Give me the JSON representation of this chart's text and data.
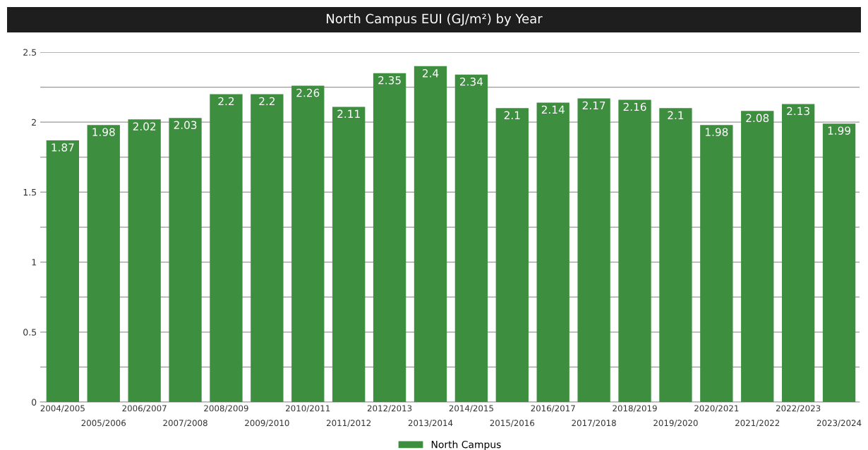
{
  "chart_data": {
    "type": "bar",
    "title": "North Campus EUI (GJ/m²) by Year",
    "categories": [
      "2004/2005",
      "2005/2006",
      "2006/2007",
      "2007/2008",
      "2008/2009",
      "2009/2010",
      "2010/2011",
      "2011/2012",
      "2012/2013",
      "2013/2014",
      "2014/2015",
      "2015/2016",
      "2016/2017",
      "2017/2018",
      "2018/2019",
      "2019/2020",
      "2020/2021",
      "2021/2022",
      "2022/2023",
      "2023/2024"
    ],
    "series": [
      {
        "name": "North Campus",
        "color": "#3d8f3f",
        "values": [
          1.87,
          1.98,
          2.02,
          2.03,
          2.2,
          2.2,
          2.26,
          2.11,
          2.35,
          2.4,
          2.34,
          2.1,
          2.14,
          2.17,
          2.16,
          2.1,
          1.98,
          2.08,
          2.13,
          1.99
        ]
      }
    ],
    "ylim": [
      0,
      2.5
    ],
    "yticks": [
      0,
      {
        "value": 0.25,
        "label": null
      },
      0.5,
      {
        "value": 0.75,
        "label": null
      },
      1,
      {
        "value": 1.25,
        "label": null
      },
      1.5,
      {
        "value": 1.75,
        "label": null
      },
      2,
      {
        "value": 2.25,
        "label": null
      },
      2.5
    ],
    "grid": "y",
    "legend": "bottom",
    "data_labels": true
  }
}
